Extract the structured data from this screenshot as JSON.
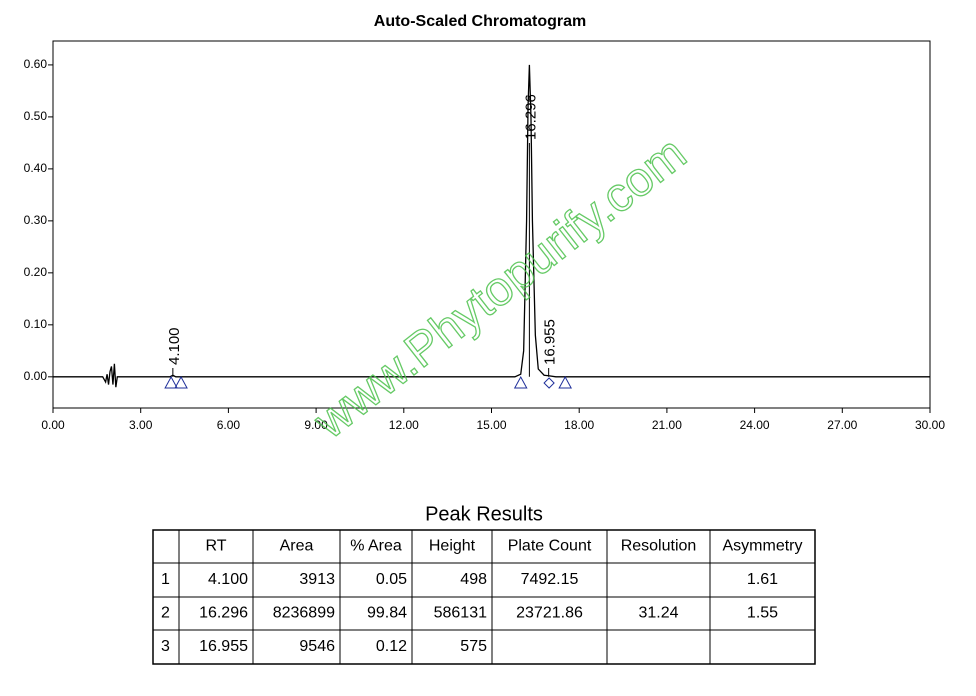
{
  "chart_data": {
    "type": "line",
    "title": "Auto-Scaled Chromatogram",
    "x": [
      0,
      1.7,
      1.8,
      1.85,
      1.9,
      1.95,
      2.0,
      2.05,
      2.1,
      2.15,
      2.2,
      3.0,
      4.0,
      4.1,
      4.2,
      5,
      15,
      15.8,
      16.0,
      16.1,
      16.2,
      16.25,
      16.296,
      16.35,
      16.4,
      16.5,
      16.6,
      16.8,
      16.955,
      17.2,
      30
    ],
    "values": [
      0,
      0,
      -0.01,
      0.005,
      -0.015,
      0.01,
      0.02,
      -0.015,
      0.025,
      -0.02,
      0,
      0,
      0,
      0.003,
      0,
      0,
      0,
      0,
      0.005,
      0.05,
      0.3,
      0.52,
      0.6,
      0.5,
      0.3,
      0.08,
      0.015,
      0.003,
      0.002,
      0,
      0
    ],
    "color": "#000000",
    "xlim": [
      0,
      30
    ],
    "ylim": [
      -0.06,
      0.646
    ],
    "xticks": [
      {
        "value": 0,
        "label": "0.00"
      },
      {
        "value": 3,
        "label": "3.00"
      },
      {
        "value": 6,
        "label": "6.00"
      },
      {
        "value": 9,
        "label": "9.00"
      },
      {
        "value": 12,
        "label": "12.00"
      },
      {
        "value": 15,
        "label": "15.00"
      },
      {
        "value": 18,
        "label": "18.00"
      },
      {
        "value": 21,
        "label": "21.00"
      },
      {
        "value": 24,
        "label": "24.00"
      },
      {
        "value": 27,
        "label": "27.00"
      },
      {
        "value": 30,
        "label": "30.00"
      }
    ],
    "yticks": [
      {
        "value": 0,
        "label": "0.00"
      },
      {
        "value": 0.1,
        "label": "0.10"
      },
      {
        "value": 0.2,
        "label": "0.20"
      },
      {
        "value": 0.3,
        "label": "0.30"
      },
      {
        "value": 0.4,
        "label": "0.40"
      },
      {
        "value": 0.5,
        "label": "0.50"
      },
      {
        "value": 0.6,
        "label": "0.60"
      }
    ],
    "annotations": [
      {
        "value": 4.1,
        "label": "4.100"
      },
      {
        "value": 16.296,
        "label": "16.296"
      },
      {
        "value": 16.955,
        "label": "16.955"
      }
    ],
    "markers": [
      {
        "x": 4.04,
        "shape": "triangle"
      },
      {
        "x": 4.38,
        "shape": "triangle"
      },
      {
        "x": 16.0,
        "shape": "triangle"
      },
      {
        "x": 16.97,
        "shape": "diamond"
      },
      {
        "x": 17.52,
        "shape": "triangle"
      }
    ],
    "marker_color": "#1f2f9a"
  },
  "watermark": "www.Phytopurify.com",
  "table": {
    "title": "Peak Results",
    "columns": [
      "",
      "RT",
      "Area",
      "% Area",
      "Height",
      "Plate Count",
      "Resolution",
      "Asymmetry"
    ],
    "rows": [
      [
        "1",
        "4.100",
        "3913",
        "0.05",
        "498",
        "7492.15",
        null,
        "1.61"
      ],
      [
        "2",
        "16.296",
        "8236899",
        "99.84",
        "586131",
        "23721.86",
        "31.24",
        "1.55"
      ],
      [
        "3",
        "16.955",
        "9546",
        "0.12",
        "575",
        null,
        null,
        null
      ]
    ]
  }
}
